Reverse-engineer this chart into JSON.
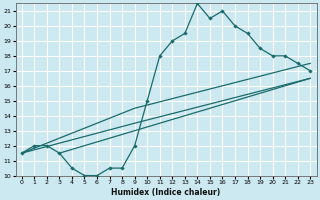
{
  "title": "",
  "xlabel": "Humidex (Indice chaleur)",
  "bg_color": "#cce8f0",
  "grid_color": "#ffffff",
  "line_color": "#1a6b6b",
  "xlim": [
    -0.5,
    23.5
  ],
  "ylim": [
    10,
    21.5
  ],
  "xticks": [
    0,
    1,
    2,
    3,
    4,
    5,
    6,
    7,
    8,
    9,
    10,
    11,
    12,
    13,
    14,
    15,
    16,
    17,
    18,
    19,
    20,
    21,
    22,
    23
  ],
  "yticks": [
    10,
    11,
    12,
    13,
    14,
    15,
    16,
    17,
    18,
    19,
    20,
    21
  ],
  "curve1_x": [
    0,
    1,
    2,
    3,
    4,
    5,
    6,
    7,
    8,
    9,
    10,
    11,
    12,
    13,
    14,
    15,
    16,
    17,
    18,
    19,
    20,
    21,
    22,
    23
  ],
  "curve1_y": [
    11.5,
    12.0,
    12.0,
    11.5,
    10.5,
    10.0,
    10.0,
    10.5,
    10.5,
    12.0,
    15.0,
    18.0,
    19.0,
    19.5,
    21.5,
    20.5,
    21.0,
    20.0,
    19.5,
    18.5,
    18.0,
    18.0,
    17.5,
    17.0
  ],
  "curve2_x": [
    0,
    9,
    23
  ],
  "curve2_y": [
    11.5,
    13.5,
    16.5
  ],
  "curve3_x": [
    0,
    9,
    23
  ],
  "curve3_y": [
    11.5,
    14.5,
    17.5
  ],
  "curve4_x": [
    3,
    9,
    23
  ],
  "curve4_y": [
    11.5,
    13.0,
    16.5
  ]
}
